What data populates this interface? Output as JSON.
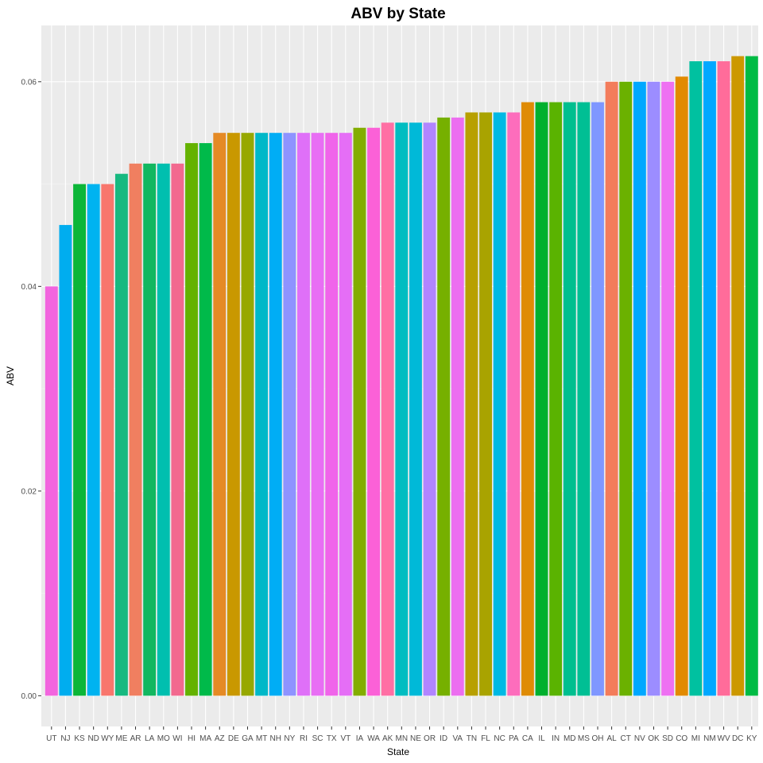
{
  "chart_data": {
    "type": "bar",
    "title": "ABV by State",
    "xlabel": "State",
    "ylabel": "ABV",
    "ylim": [
      -0.003,
      0.0655
    ],
    "yticks": [
      0.0,
      0.02,
      0.04,
      0.06
    ],
    "ytick_labels": [
      "0.00",
      "0.02",
      "0.04",
      "0.06"
    ],
    "grid": true,
    "legend": "none",
    "categories": [
      "UT",
      "NJ",
      "KS",
      "ND",
      "WY",
      "ME",
      "AR",
      "LA",
      "MO",
      "WI",
      "HI",
      "MA",
      "AZ",
      "DE",
      "GA",
      "MT",
      "NH",
      "NY",
      "RI",
      "SC",
      "TX",
      "VT",
      "IA",
      "WA",
      "AK",
      "MN",
      "NE",
      "OR",
      "ID",
      "VA",
      "TN",
      "FL",
      "NC",
      "PA",
      "CA",
      "IL",
      "IN",
      "MD",
      "MS",
      "OH",
      "AL",
      "CT",
      "NV",
      "OK",
      "SD",
      "CO",
      "MI",
      "NM",
      "WV",
      "DC",
      "KY"
    ],
    "values": [
      0.04,
      0.046,
      0.05,
      0.05,
      0.05,
      0.051,
      0.052,
      0.052,
      0.052,
      0.052,
      0.054,
      0.054,
      0.055,
      0.055,
      0.055,
      0.055,
      0.055,
      0.055,
      0.055,
      0.055,
      0.055,
      0.055,
      0.0555,
      0.0555,
      0.056,
      0.056,
      0.056,
      0.056,
      0.0565,
      0.0565,
      0.057,
      0.057,
      0.057,
      0.057,
      0.058,
      0.058,
      0.058,
      0.058,
      0.058,
      0.058,
      0.06,
      0.06,
      0.06,
      0.06,
      0.06,
      0.0605,
      0.062,
      0.062,
      0.062,
      0.0625,
      0.0625
    ],
    "colors": [
      "#F265DE",
      "#00ADEF",
      "#0CB638",
      "#00B3F0",
      "#F8766D",
      "#17B980",
      "#F07F60",
      "#12B760",
      "#00BFAF",
      "#F2698F",
      "#64B200",
      "#00BA4A",
      "#E58A25",
      "#C99800",
      "#97A800",
      "#00B8C8",
      "#00ADF5",
      "#8E93FF",
      "#DF70F8",
      "#E86EF4",
      "#F064EA",
      "#E56EF6",
      "#83AD00",
      "#FB61D7",
      "#FF6FA4",
      "#00BDC1",
      "#00B9D8",
      "#B185FF",
      "#76B000",
      "#EC6EF0",
      "#B8A000",
      "#A9A300",
      "#00B9E4",
      "#FD6DBC",
      "#DF8B05",
      "#00B02E",
      "#5AB301",
      "#00BF8F",
      "#00BF94",
      "#7F97FF",
      "#F37C5B",
      "#6BB100",
      "#00A8FF",
      "#9C8DFF",
      "#EE70F2",
      "#E28A00",
      "#00C1A0",
      "#00A8FF",
      "#FF6C9A",
      "#CC9800",
      "#00BB44"
    ]
  }
}
